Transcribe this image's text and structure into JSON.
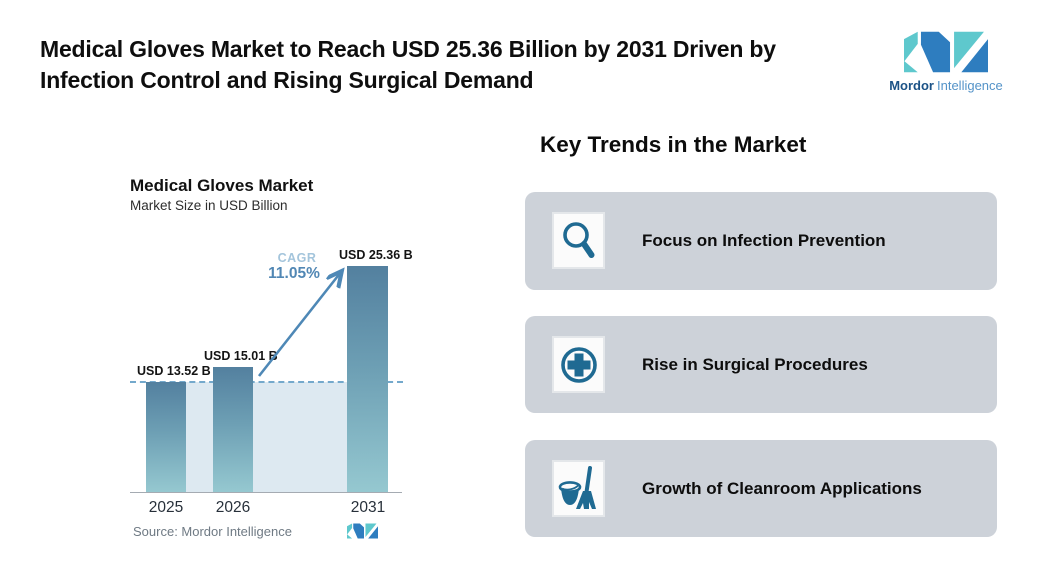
{
  "header": {
    "title_line1": "Medical Gloves Market to Reach USD 25.36 Billion by 2031 Driven by",
    "title_line2": "Infection Control and Rising Surgical Demand",
    "brand_bold": "Mordor",
    "brand_light": "Intelligence"
  },
  "chart": {
    "title": "Medical Gloves Market",
    "subtitle": "Market Size in USD Billion",
    "cagr_label": "CAGR",
    "cagr_value": "11.05%",
    "source": "Source: Mordor Intelligence",
    "bars": [
      {
        "year": "2025",
        "label": "USD 13.52 B",
        "value": 13.52
      },
      {
        "year": "2026",
        "label": "USD 15.01 B",
        "value": 15.01
      },
      {
        "year": "2031",
        "label": "USD 25.36 B",
        "value": 25.36
      }
    ]
  },
  "chart_data": {
    "type": "bar",
    "title": "Medical Gloves Market",
    "subtitle": "Market Size in USD Billion",
    "categories": [
      "2025",
      "2026",
      "2031"
    ],
    "values": [
      13.52,
      15.01,
      25.36
    ],
    "data_labels": [
      "USD 13.52 B",
      "USD 15.01 B",
      "USD 25.36 B"
    ],
    "ylabel": "Market Size in USD Billion",
    "unit": "USD Billion",
    "annotations": {
      "cagr": "11.05%",
      "reference_line_level": 13.52
    },
    "grid": false,
    "legend": false
  },
  "trends": {
    "heading": "Key Trends in the Market",
    "items": [
      {
        "icon": "magnifier-icon",
        "label": "Focus on Infection Prevention"
      },
      {
        "icon": "medical-cross-icon",
        "label": "Rise in Surgical Procedures"
      },
      {
        "icon": "cleaning-icon",
        "label": "Growth of Cleanroom Applications"
      }
    ]
  },
  "colors": {
    "bar_top": "#53809f",
    "bar_bottom": "#95c8d0",
    "plot_fill": "#dde9f1",
    "dashed_line": "#74a9cc",
    "arrow": "#4e88b6",
    "card_background": "#cdd2d9",
    "icon_teal": "#1f6a92",
    "logo_teal": "#5ec8cd",
    "logo_blue": "#2e7dbf"
  }
}
